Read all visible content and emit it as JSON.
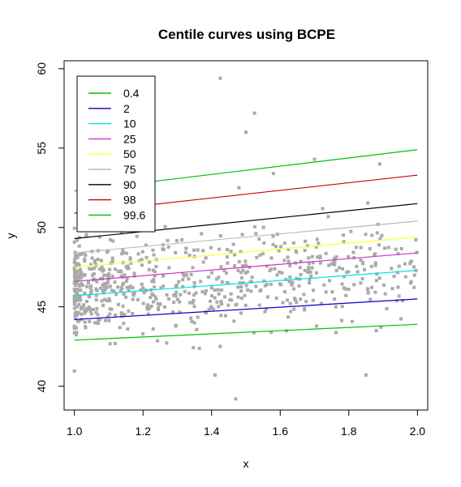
{
  "chart_data": {
    "type": "scatter",
    "title": "Centile curves using BCPE",
    "xlabel": "x",
    "ylabel": "y",
    "xlim": [
      0.97,
      2.03
    ],
    "ylim": [
      38.5,
      60.5
    ],
    "x_ticks": [
      1.0,
      1.2,
      1.4,
      1.6,
      1.8,
      2.0
    ],
    "x_tick_labels": [
      "1.0",
      "1.2",
      "1.4",
      "1.6",
      "1.8",
      "2.0"
    ],
    "y_ticks": [
      40,
      45,
      50,
      55,
      60
    ],
    "y_tick_labels": [
      "40",
      "45",
      "50",
      "55",
      "60"
    ],
    "legend_position": "top-left",
    "point_color": "#aaaaaa",
    "point_count": 700,
    "point_model": {
      "intercept": 46.0,
      "slope": 1.6,
      "spread": 1.45
    },
    "outliers": [
      {
        "x": 1.425,
        "y": 59.4
      },
      {
        "x": 1.525,
        "y": 57.2
      },
      {
        "x": 1.5,
        "y": 56.0
      },
      {
        "x": 1.425,
        "y": 42.5
      },
      {
        "x": 1.47,
        "y": 39.2
      },
      {
        "x": 1.41,
        "y": 40.7
      },
      {
        "x": 1.85,
        "y": 40.7
      },
      {
        "x": 1.88,
        "y": 43.5
      },
      {
        "x": 1.2,
        "y": 43.3
      },
      {
        "x": 1.35,
        "y": 44.0
      },
      {
        "x": 1.89,
        "y": 54.0
      },
      {
        "x": 1.7,
        "y": 54.3
      },
      {
        "x": 1.58,
        "y": 53.4
      },
      {
        "x": 1.48,
        "y": 52.5
      },
      {
        "x": 1.03,
        "y": 44.6
      },
      {
        "x": 1.98,
        "y": 46.5
      }
    ],
    "series": [
      {
        "name": "0.4",
        "color": "#00c000",
        "x": [
          1.0,
          2.0
        ],
        "y": [
          42.9,
          43.9
        ]
      },
      {
        "name": "2",
        "color": "#0000cc",
        "x": [
          1.0,
          2.0
        ],
        "y": [
          44.2,
          45.5
        ]
      },
      {
        "name": "10",
        "color": "#00e5e5",
        "x": [
          1.0,
          2.0
        ],
        "y": [
          45.7,
          47.3
        ]
      },
      {
        "name": "25",
        "color": "#cc33cc",
        "x": [
          1.0,
          2.0
        ],
        "y": [
          46.6,
          48.4
        ]
      },
      {
        "name": "50",
        "color": "#ffff33",
        "x": [
          1.0,
          2.0
        ],
        "y": [
          47.5,
          49.4
        ]
      },
      {
        "name": "75",
        "color": "#bbbbbb",
        "x": [
          1.0,
          2.0
        ],
        "y": [
          48.4,
          50.4
        ]
      },
      {
        "name": "90",
        "color": "#000000",
        "x": [
          1.0,
          2.0
        ],
        "y": [
          49.3,
          51.5
        ]
      },
      {
        "name": "98",
        "color": "#cc0000",
        "x": [
          1.0,
          2.0
        ],
        "y": [
          50.9,
          53.3
        ]
      },
      {
        "name": "99.6",
        "color": "#00c000",
        "x": [
          1.0,
          2.0
        ],
        "y": [
          52.3,
          54.9
        ]
      }
    ]
  }
}
